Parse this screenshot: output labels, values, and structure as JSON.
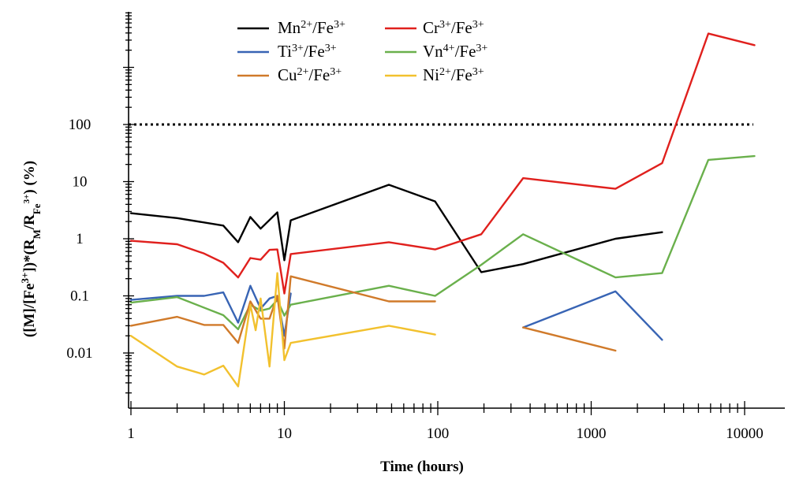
{
  "chart_data": {
    "type": "line",
    "xlabel": "Time (hours)",
    "ylabel": {
      "parts": [
        "([M]/[Fe",
        "3+",
        "])*(R",
        "M",
        "/R",
        "Fe",
        "3+",
        ") (%)"
      ]
    },
    "x_scale": "log",
    "y_scale": "log",
    "xlim": [
      1,
      12000
    ],
    "ylim": [
      0.0008,
      22000
    ],
    "x_ticks": [
      1,
      10,
      100,
      1000,
      10000
    ],
    "x_tick_labels": [
      "1",
      "10",
      "100",
      "1000",
      "10000"
    ],
    "y_tick_values": [
      0.01,
      0.1,
      1,
      10,
      100
    ],
    "y_tick_labels": [
      "0.01",
      "0.1",
      "1",
      "10",
      "100"
    ],
    "reference_line": {
      "y": 100,
      "style": "dotted",
      "color": "#000000"
    },
    "grid": false,
    "legend_position": "top",
    "series": [
      {
        "name": {
          "base": "Mn",
          "sup": "2+",
          "tail": "/Fe",
          "tail_sup": "3+"
        },
        "color": "#000000",
        "segments": [
          [
            [
              1,
              2.8
            ],
            [
              2,
              2.3
            ],
            [
              4,
              1.7
            ],
            [
              5,
              0.87
            ],
            [
              6,
              2.4
            ],
            [
              7,
              1.5
            ],
            [
              9,
              2.9
            ],
            [
              10,
              0.42
            ],
            [
              11,
              2.1
            ],
            [
              48,
              8.8
            ],
            [
              96,
              4.5
            ],
            [
              192,
              0.26
            ],
            [
              360,
              0.36
            ],
            [
              1440,
              1.0
            ],
            [
              2900,
              1.3
            ]
          ]
        ]
      },
      {
        "name": {
          "base": "Cr",
          "sup": "3+",
          "tail": "/Fe",
          "tail_sup": "3+"
        },
        "color": "#e0201d",
        "segments": [
          [
            [
              1,
              0.92
            ],
            [
              2,
              0.8
            ],
            [
              3,
              0.55
            ],
            [
              4,
              0.38
            ],
            [
              5,
              0.21
            ],
            [
              6,
              0.46
            ],
            [
              7,
              0.43
            ],
            [
              8,
              0.64
            ],
            [
              9,
              0.65
            ],
            [
              10,
              0.11
            ],
            [
              11,
              0.54
            ],
            [
              48,
              0.87
            ],
            [
              96,
              0.65
            ],
            [
              192,
              1.2
            ],
            [
              360,
              11.5
            ],
            [
              1440,
              7.5
            ],
            [
              2900,
              21
            ],
            [
              5800,
              3900
            ],
            [
              11600,
              2450
            ]
          ]
        ]
      },
      {
        "name": {
          "base": "Ti",
          "sup": "3+",
          "tail": "/Fe",
          "tail_sup": "3+"
        },
        "color": "#3864b4",
        "segments": [
          [
            [
              1,
              0.085
            ],
            [
              2,
              0.1
            ],
            [
              3,
              0.1
            ],
            [
              4,
              0.115
            ],
            [
              5,
              0.034
            ],
            [
              6,
              0.15
            ],
            [
              7,
              0.06
            ],
            [
              8,
              0.09
            ],
            [
              9,
              0.1
            ],
            [
              10,
              0.02
            ],
            [
              11,
              0.11
            ]
          ],
          [
            [
              360,
              0.028
            ],
            [
              1440,
              0.12
            ],
            [
              2900,
              0.017
            ]
          ]
        ]
      },
      {
        "name": {
          "base": "Vn",
          "sup": "4+",
          "tail": "/Fe",
          "tail_sup": "3+"
        },
        "color": "#6ab04c",
        "segments": [
          [
            [
              1,
              0.076
            ],
            [
              2,
              0.095
            ],
            [
              4,
              0.046
            ],
            [
              5,
              0.026
            ],
            [
              6,
              0.07
            ],
            [
              7,
              0.055
            ],
            [
              8,
              0.06
            ],
            [
              9,
              0.085
            ],
            [
              10,
              0.045
            ],
            [
              11,
              0.07
            ],
            [
              48,
              0.15
            ],
            [
              96,
              0.1
            ],
            [
              192,
              0.35
            ],
            [
              360,
              1.2
            ],
            [
              1440,
              0.21
            ],
            [
              2900,
              0.25
            ],
            [
              5800,
              24
            ],
            [
              11600,
              28
            ]
          ]
        ]
      },
      {
        "name": {
          "base": "Cu",
          "sup": "2+",
          "tail": "/Fe",
          "tail_sup": "3+"
        },
        "color": "#d07a2a",
        "segments": [
          [
            [
              1,
              0.03
            ],
            [
              2,
              0.043
            ],
            [
              3,
              0.031
            ],
            [
              4,
              0.031
            ],
            [
              5,
              0.015
            ],
            [
              6,
              0.08
            ],
            [
              7,
              0.04
            ],
            [
              8,
              0.04
            ],
            [
              9,
              0.1
            ],
            [
              10,
              0.012
            ],
            [
              11,
              0.22
            ],
            [
              48,
              0.08
            ],
            [
              96,
              0.08
            ]
          ],
          [
            [
              360,
              0.028
            ],
            [
              1440,
              0.011
            ]
          ]
        ]
      },
      {
        "name": {
          "base": "Ni",
          "sup": "2+",
          "tail": "/Fe",
          "tail_sup": "3+"
        },
        "color": "#f2c12e",
        "segments": [
          [
            [
              1,
              0.02
            ],
            [
              2,
              0.0058
            ],
            [
              3,
              0.0042
            ],
            [
              4,
              0.006
            ],
            [
              5,
              0.0026
            ],
            [
              6,
              0.07
            ],
            [
              6.5,
              0.025
            ],
            [
              7,
              0.09
            ],
            [
              8,
              0.0058
            ],
            [
              9,
              0.25
            ],
            [
              10,
              0.0075
            ],
            [
              11,
              0.015
            ],
            [
              48,
              0.03
            ],
            [
              96,
              0.021
            ]
          ]
        ]
      }
    ]
  }
}
